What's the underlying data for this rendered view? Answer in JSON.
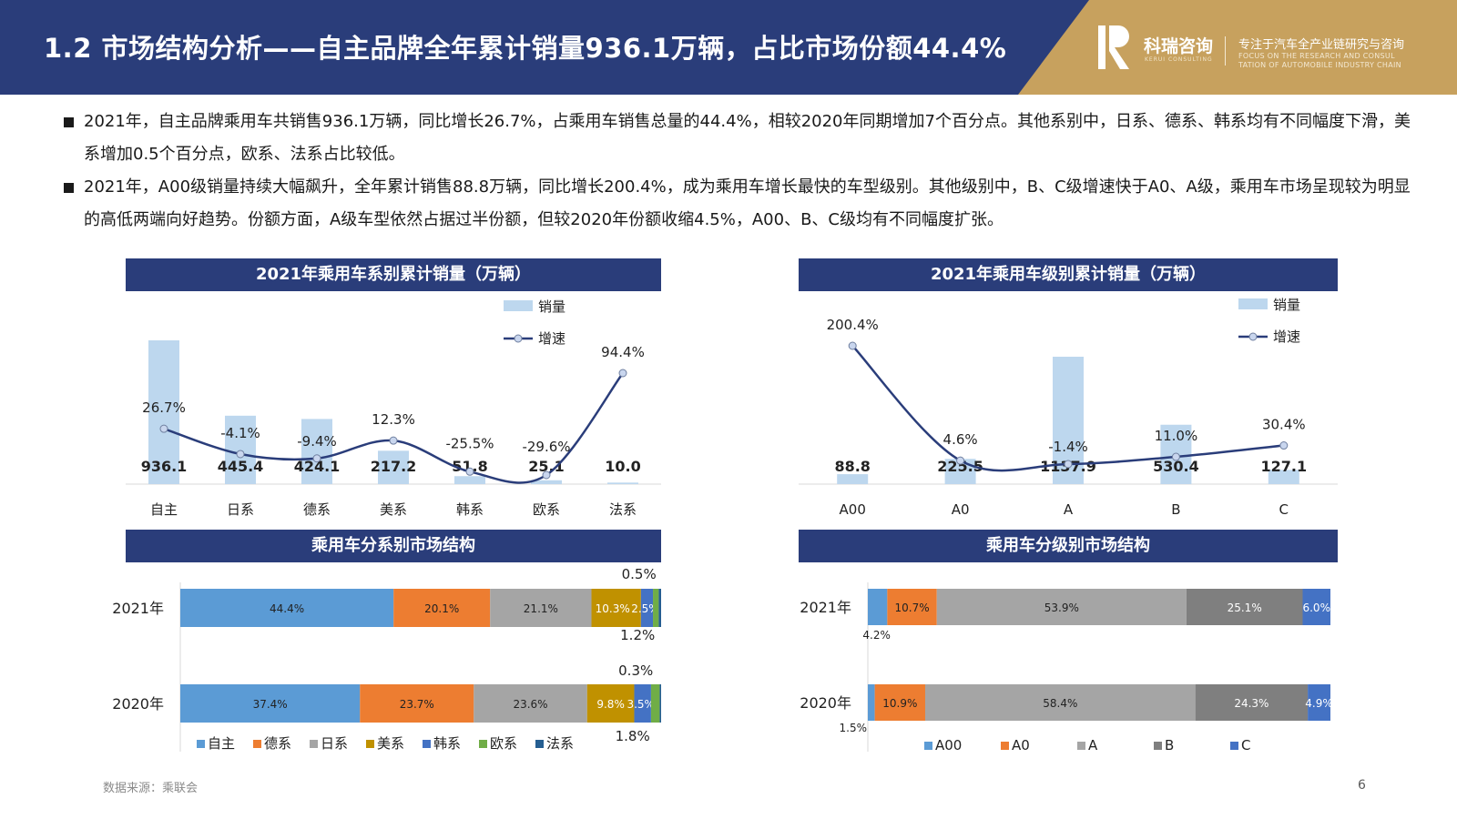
{
  "header": {
    "title": "1.2 市场结构分析——自主品牌全年累计销量936.1万辆，占比市场份额44.4%",
    "logo_cn": "科瑞咨询",
    "logo_en": "KERUI CONSULTING",
    "tagline_cn": "专注于汽车全产业链研究与咨询",
    "tagline_en_1": "FOCUS ON THE RESEARCH AND CONSUL",
    "tagline_en_2": "TATION OF AUTOMOBILE INDUSTRY CHAIN",
    "colors": {
      "navy": "#2a3d7a",
      "gold": "#c7a15e"
    }
  },
  "bullets": [
    "2021年，自主品牌乘用车共销售936.1万辆，同比增长26.7%，占乘用车销售总量的44.4%，相较2020年同期增加7个百分点。其他系别中，日系、德系、韩系均有不同幅度下滑，美系增加0.5个百分点，欧系、法系占比较低。",
    "2021年，A00级销量持续大幅飙升，全年累计销售88.8万辆，同比增长200.4%，成为乘用车增长最快的车型级别。其他级别中，B、C级增速快于A0、A级，乘用车市场呈现较为明显的高低两端向好趋势。份额方面，A级车型依然占据过半份额，但较2020年份额收缩4.5%，A00、B、C级均有不同幅度扩张。"
  ],
  "footer": {
    "source": "数据来源：乘联会",
    "page": "6"
  },
  "chart_data": [
    {
      "type": "bar",
      "title": "2021年乘用车系别累计销量（万辆）",
      "categories": [
        "自主",
        "日系",
        "德系",
        "美系",
        "韩系",
        "欧系",
        "法系"
      ],
      "series": [
        {
          "name": "销量",
          "values": [
            936.1,
            445.4,
            424.1,
            217.2,
            51.8,
            25.1,
            10.0
          ],
          "labels": [
            "936.1",
            "445.4",
            "424.1",
            "217.2",
            "51.8",
            "25.1",
            "10.0"
          ]
        },
        {
          "name": "增速",
          "type": "line",
          "values": [
            26.7,
            -4.1,
            -9.4,
            12.3,
            -25.5,
            -29.6,
            94.4
          ],
          "labels": [
            "26.7%",
            "-4.1%",
            "-9.4%",
            "12.3%",
            "-25.5%",
            "-29.6%",
            "94.4%"
          ]
        }
      ],
      "legend": "top-right"
    },
    {
      "type": "bar",
      "title": "2021年乘用车级别累计销量（万辆）",
      "categories": [
        "A00",
        "A0",
        "A",
        "B",
        "C"
      ],
      "series": [
        {
          "name": "销量",
          "values": [
            88.8,
            225.5,
            1137.9,
            530.4,
            127.1
          ],
          "labels": [
            "88.8",
            "225.5",
            "1137.9",
            "530.4",
            "127.1"
          ]
        },
        {
          "name": "增速",
          "type": "line",
          "values": [
            200.4,
            4.6,
            -1.4,
            11.0,
            30.4
          ],
          "labels": [
            "200.4%",
            "4.6%",
            "-1.4%",
            "11.0%",
            "30.4%"
          ]
        }
      ],
      "legend": "top-right"
    },
    {
      "type": "bar",
      "stacked": true,
      "orientation": "horizontal",
      "title": "乘用车分系别市场结构",
      "categories": [
        "2021年",
        "2020年"
      ],
      "series": [
        {
          "name": "自主",
          "color": "#5b9bd5",
          "values": [
            44.4,
            37.4
          ],
          "labels": [
            "44.4%",
            "37.4%"
          ]
        },
        {
          "name": "德系",
          "color": "#ed7d31",
          "values": [
            20.1,
            23.7
          ],
          "labels": [
            "20.1%",
            "23.7%"
          ]
        },
        {
          "name": "日系",
          "color": "#a5a5a5",
          "values": [
            21.1,
            23.6
          ],
          "labels": [
            "21.1%",
            "23.6%"
          ]
        },
        {
          "name": "美系",
          "color": "#c09100",
          "values": [
            10.3,
            9.8
          ],
          "labels": [
            "10.3%",
            "9.8%"
          ]
        },
        {
          "name": "韩系",
          "color": "#4472c4",
          "values": [
            2.5,
            3.5
          ],
          "labels": [
            "2.5%",
            "3.5%"
          ]
        },
        {
          "name": "欧系",
          "color": "#70ad47",
          "values": [
            1.2,
            1.8
          ],
          "labels": [
            "1.2%",
            "1.8%"
          ]
        },
        {
          "name": "法系",
          "color": "#255e91",
          "values": [
            0.5,
            0.3
          ],
          "labels": [
            "0.5%",
            "0.3%"
          ]
        }
      ],
      "legend": "bottom"
    },
    {
      "type": "bar",
      "stacked": true,
      "orientation": "horizontal",
      "title": "乘用车分级别市场结构",
      "categories": [
        "2021年",
        "2020年"
      ],
      "series": [
        {
          "name": "A00",
          "color": "#5b9bd5",
          "values": [
            4.2,
            1.5
          ],
          "labels": [
            "4.2%",
            "1.5%"
          ]
        },
        {
          "name": "A0",
          "color": "#ed7d31",
          "values": [
            10.7,
            10.9
          ],
          "labels": [
            "10.7%",
            "10.9%"
          ]
        },
        {
          "name": "A",
          "color": "#a5a5a5",
          "values": [
            53.9,
            58.4
          ],
          "labels": [
            "53.9%",
            "58.4%"
          ]
        },
        {
          "name": "B",
          "color": "#7f7f7f",
          "values": [
            25.1,
            24.3
          ],
          "labels": [
            "25.1%",
            "24.3%"
          ]
        },
        {
          "name": "C",
          "color": "#4472c4",
          "values": [
            6.0,
            4.9
          ],
          "labels": [
            "6.0%",
            "4.9%"
          ]
        }
      ],
      "legend": "bottom"
    }
  ]
}
